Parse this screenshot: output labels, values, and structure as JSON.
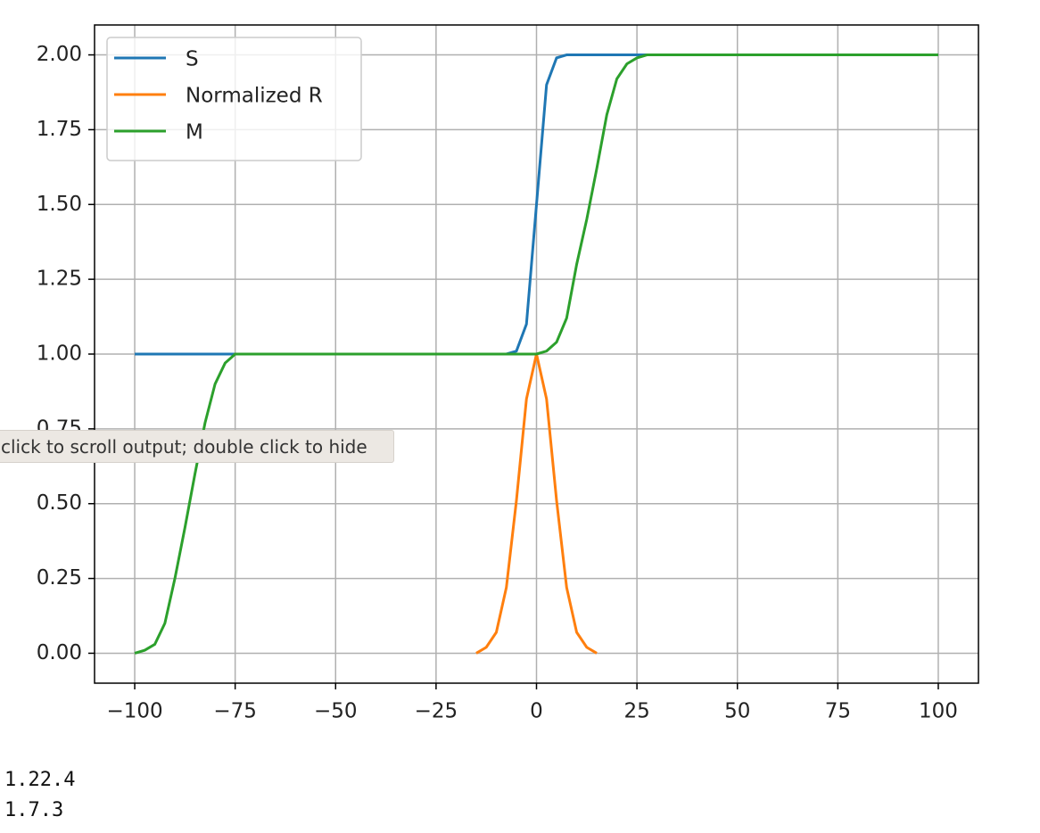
{
  "chart_data": {
    "type": "line",
    "x": [
      -100,
      -97.5,
      -95,
      -92.5,
      -90,
      -87.5,
      -85,
      -82.5,
      -80,
      -77.5,
      -75,
      -70,
      -60,
      -50,
      -40,
      -30,
      -20,
      -15,
      -12.5,
      -10,
      -7.5,
      -5,
      -2.5,
      0,
      2.5,
      5,
      7.5,
      10,
      12.5,
      15,
      17.5,
      20,
      22.5,
      25,
      27.5,
      30,
      40,
      50,
      60,
      70,
      80,
      90,
      100
    ],
    "series": [
      {
        "name": "S",
        "color": "#1f77b4",
        "values": [
          1,
          1,
          1,
          1,
          1,
          1,
          1,
          1,
          1,
          1,
          1,
          1,
          1,
          1,
          1,
          1,
          1,
          1,
          1,
          1,
          1,
          1.01,
          1.1,
          1.5,
          1.9,
          1.99,
          2,
          2,
          2,
          2,
          2,
          2,
          2,
          2,
          2,
          2,
          2,
          2,
          2,
          2,
          2,
          2,
          2
        ]
      },
      {
        "name": "Normalized R",
        "color": "#ff7f0e",
        "values": [
          null,
          null,
          null,
          null,
          null,
          null,
          null,
          null,
          null,
          null,
          null,
          null,
          null,
          null,
          null,
          null,
          null,
          0,
          0.02,
          0.07,
          0.22,
          0.51,
          0.85,
          1,
          0.85,
          0.51,
          0.22,
          0.07,
          0.02,
          0,
          null,
          null,
          null,
          null,
          null,
          null,
          null,
          null,
          null,
          null,
          null,
          null,
          null
        ]
      },
      {
        "name": "M",
        "color": "#2ca02c",
        "values": [
          0,
          0.01,
          0.03,
          0.1,
          0.25,
          0.42,
          0.6,
          0.77,
          0.9,
          0.97,
          1,
          1,
          1,
          1,
          1,
          1,
          1,
          1,
          1,
          1,
          1,
          1,
          1,
          1,
          1.01,
          1.04,
          1.12,
          1.3,
          1.45,
          1.62,
          1.8,
          1.92,
          1.97,
          1.99,
          2,
          2,
          2,
          2,
          2,
          2,
          2,
          2,
          2
        ]
      }
    ],
    "xlim": [
      -110,
      110
    ],
    "xticks": [
      {
        "value": -100,
        "label": "−100"
      },
      {
        "value": -75,
        "label": "−75"
      },
      {
        "value": -50,
        "label": "−50"
      },
      {
        "value": -25,
        "label": "−25"
      },
      0,
      25,
      50,
      75,
      100
    ],
    "ylim": [
      -0.1,
      2.1
    ],
    "yticks": [
      {
        "value": 0,
        "label": "0.00"
      },
      {
        "value": 0.25,
        "label": "0.25"
      },
      {
        "value": 0.5,
        "label": "0.50"
      },
      {
        "value": 0.75,
        "label": "0.75"
      },
      {
        "value": 1,
        "label": "1.00"
      },
      {
        "value": 1.25,
        "label": "1.25"
      },
      {
        "value": 1.5,
        "label": "1.50"
      },
      {
        "value": 1.75,
        "label": "1.75"
      },
      {
        "value": 2,
        "label": "2.00"
      }
    ],
    "grid": true,
    "legend": "upper left"
  },
  "tooltip": "click to scroll output; double click to hide",
  "output_lines": [
    "1.22.4",
    "1.7.3"
  ]
}
